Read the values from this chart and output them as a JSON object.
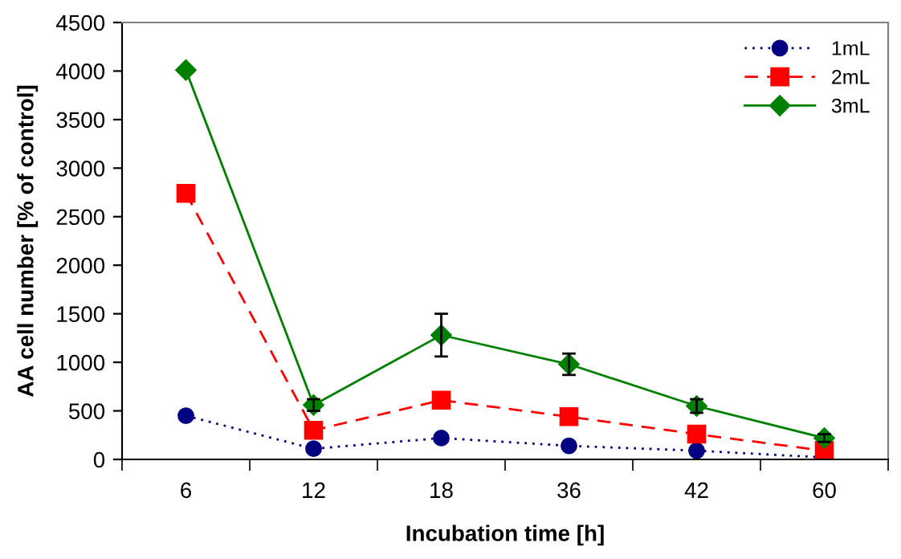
{
  "chart_data": {
    "type": "line",
    "xlabel": "Incubation time [h]",
    "ylabel": "AA cell number [% of control]",
    "categories": [
      "6",
      "12",
      "18",
      "36",
      "42",
      "60"
    ],
    "ylim": [
      0,
      4500
    ],
    "yticks": [
      0,
      500,
      1000,
      1500,
      2000,
      2500,
      3000,
      3500,
      4000,
      4500
    ],
    "grid": false,
    "legend": "top right",
    "series": [
      {
        "name": "1mL",
        "color": "#000080",
        "marker": "circle",
        "line_style": "dotted",
        "values": [
          450,
          110,
          220,
          140,
          90,
          20
        ]
      },
      {
        "name": "2mL",
        "color": "#ff0000",
        "marker": "square",
        "line_style": "dashed",
        "values": [
          2740,
          300,
          610,
          440,
          260,
          90
        ]
      },
      {
        "name": "3mL",
        "color": "#008000",
        "marker": "diamond",
        "line_style": "solid",
        "values": [
          4010,
          560,
          1280,
          980,
          550,
          220
        ],
        "errors": [
          null,
          60,
          220,
          110,
          70,
          40
        ]
      }
    ]
  }
}
